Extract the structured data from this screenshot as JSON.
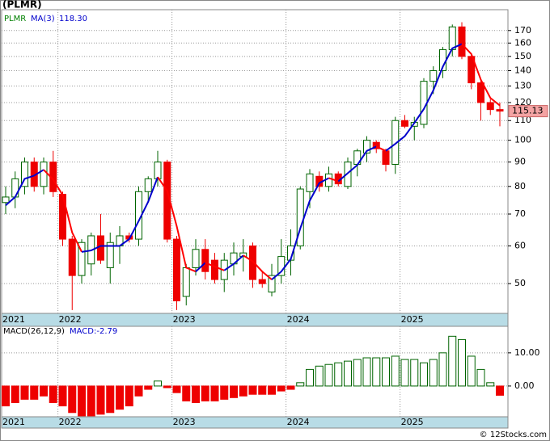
{
  "chart_data": [
    {
      "type": "candlestick",
      "title": "(PLMR)",
      "name": "PLMR",
      "categories": [
        "2021",
        null,
        null,
        null,
        null,
        null,
        "2022",
        null,
        null,
        null,
        null,
        null,
        null,
        null,
        null,
        null,
        null,
        null,
        "2023",
        null,
        null,
        null,
        null,
        null,
        null,
        null,
        null,
        null,
        null,
        null,
        "2024",
        null,
        null,
        null,
        null,
        null,
        null,
        null,
        null,
        null,
        null,
        null,
        "2025",
        null,
        null,
        null,
        null,
        null,
        null,
        null,
        null,
        null,
        null
      ],
      "open": [
        74,
        76,
        80,
        90,
        80,
        90,
        77,
        62,
        52,
        55,
        63,
        54,
        60,
        63,
        62,
        78,
        83,
        90,
        62,
        47,
        54,
        59,
        56,
        51,
        55,
        57,
        60,
        51,
        48,
        52,
        56,
        60,
        78,
        84,
        80,
        85,
        80,
        89,
        94,
        99,
        95,
        89,
        110,
        107,
        108,
        133,
        140,
        155,
        173,
        150,
        132,
        120,
        116
      ],
      "high": [
        80,
        86,
        92,
        92,
        92,
        95,
        78,
        63,
        62,
        64,
        70,
        64,
        66,
        64,
        80,
        84,
        95,
        91,
        63,
        55,
        62,
        62,
        58,
        58,
        61,
        62,
        61,
        53,
        55,
        62,
        65,
        80,
        87,
        86,
        88,
        86,
        92,
        96,
        102,
        100,
        96,
        112,
        113,
        112,
        135,
        143,
        157,
        175,
        177,
        152,
        135,
        122,
        120
      ],
      "low": [
        70,
        72,
        77,
        78,
        77,
        76,
        60,
        44,
        50,
        52,
        55,
        50,
        55,
        61,
        60,
        74,
        80,
        61,
        44,
        45,
        52,
        51,
        50,
        48,
        52,
        53,
        49,
        49,
        47,
        50,
        52,
        59,
        72,
        78,
        78,
        80,
        79,
        84,
        90,
        94,
        86,
        85,
        106,
        100,
        106,
        125,
        135,
        150,
        148,
        128,
        110,
        113,
        107
      ],
      "close": [
        76,
        83,
        90,
        80,
        90,
        78,
        62,
        52,
        61,
        63,
        56,
        61,
        63,
        62,
        78,
        83,
        90,
        62,
        46,
        54,
        59,
        53,
        51,
        56,
        58,
        58,
        51,
        50,
        52,
        57,
        60,
        79,
        85,
        80,
        85,
        81,
        90,
        95,
        100,
        96,
        89,
        110,
        107,
        109,
        133,
        140,
        155,
        173,
        150,
        132,
        120,
        116,
        115.13
      ],
      "up_color": "#006400",
      "down_color": "#ee0000",
      "name_color": "#008000",
      "series": [
        {
          "name": "MA(3)",
          "color": "#0000cc",
          "down_color": "#ff0000",
          "last_label": "118.30",
          "values": [
            73,
            76,
            83,
            84.3,
            86.7,
            82.7,
            76.7,
            64,
            58.3,
            58.7,
            60,
            60,
            60,
            62,
            67.7,
            74.3,
            83.7,
            78.3,
            66,
            54,
            53,
            55.3,
            54.3,
            53.3,
            55,
            57.3,
            55.7,
            53,
            51,
            53,
            56.3,
            65.3,
            74.7,
            81.3,
            83.3,
            82,
            85.3,
            88.7,
            95,
            97,
            95,
            98.3,
            102,
            108.7,
            116.3,
            127.3,
            142.7,
            156,
            159.3,
            151.7,
            134,
            122.7,
            118.3
          ]
        }
      ],
      "ylim": [
        43.3,
        188
      ],
      "log": true,
      "grid": true,
      "last_price_color": "#f4a3a3",
      "yticks": [
        50,
        60,
        70,
        80,
        90,
        100,
        110,
        120,
        130,
        140,
        150,
        160,
        170
      ]
    },
    {
      "type": "bar",
      "title": "MACD(26,12,9)",
      "label": "MACD:-2.79",
      "label_color": "#0000cc",
      "categories": [
        "2021",
        null,
        null,
        null,
        null,
        null,
        "2022",
        null,
        null,
        null,
        null,
        null,
        null,
        null,
        null,
        null,
        null,
        null,
        "2023",
        null,
        null,
        null,
        null,
        null,
        null,
        null,
        null,
        null,
        null,
        null,
        "2024",
        null,
        null,
        null,
        null,
        null,
        null,
        null,
        null,
        null,
        null,
        null,
        "2025",
        null,
        null,
        null,
        null,
        null,
        null,
        null,
        null,
        null,
        null
      ],
      "values": [
        -6,
        -5,
        -4,
        -4,
        -3,
        -5,
        -6,
        -8,
        -9,
        -9,
        -8.5,
        -8,
        -7,
        -6,
        -3,
        -1,
        1.5,
        -0.5,
        -2,
        -4.5,
        -5,
        -4.5,
        -4.5,
        -4,
        -3.5,
        -3,
        -2.5,
        -2.5,
        -2.5,
        -1.5,
        -1,
        1,
        5,
        6,
        6.5,
        7,
        7.5,
        8,
        8.5,
        8.5,
        8.5,
        9,
        8,
        8,
        7,
        8,
        10,
        15,
        14,
        9,
        5,
        1,
        -2.79
      ],
      "up_color": "#006400",
      "down_color": "#ee0000",
      "ylim": [
        -9.27,
        18
      ],
      "grid": true,
      "yticks": [
        {
          "value": 10,
          "label": "10.00"
        },
        {
          "value": 0,
          "label": "0.00"
        }
      ]
    }
  ],
  "footer": "© 12Stocks.com"
}
